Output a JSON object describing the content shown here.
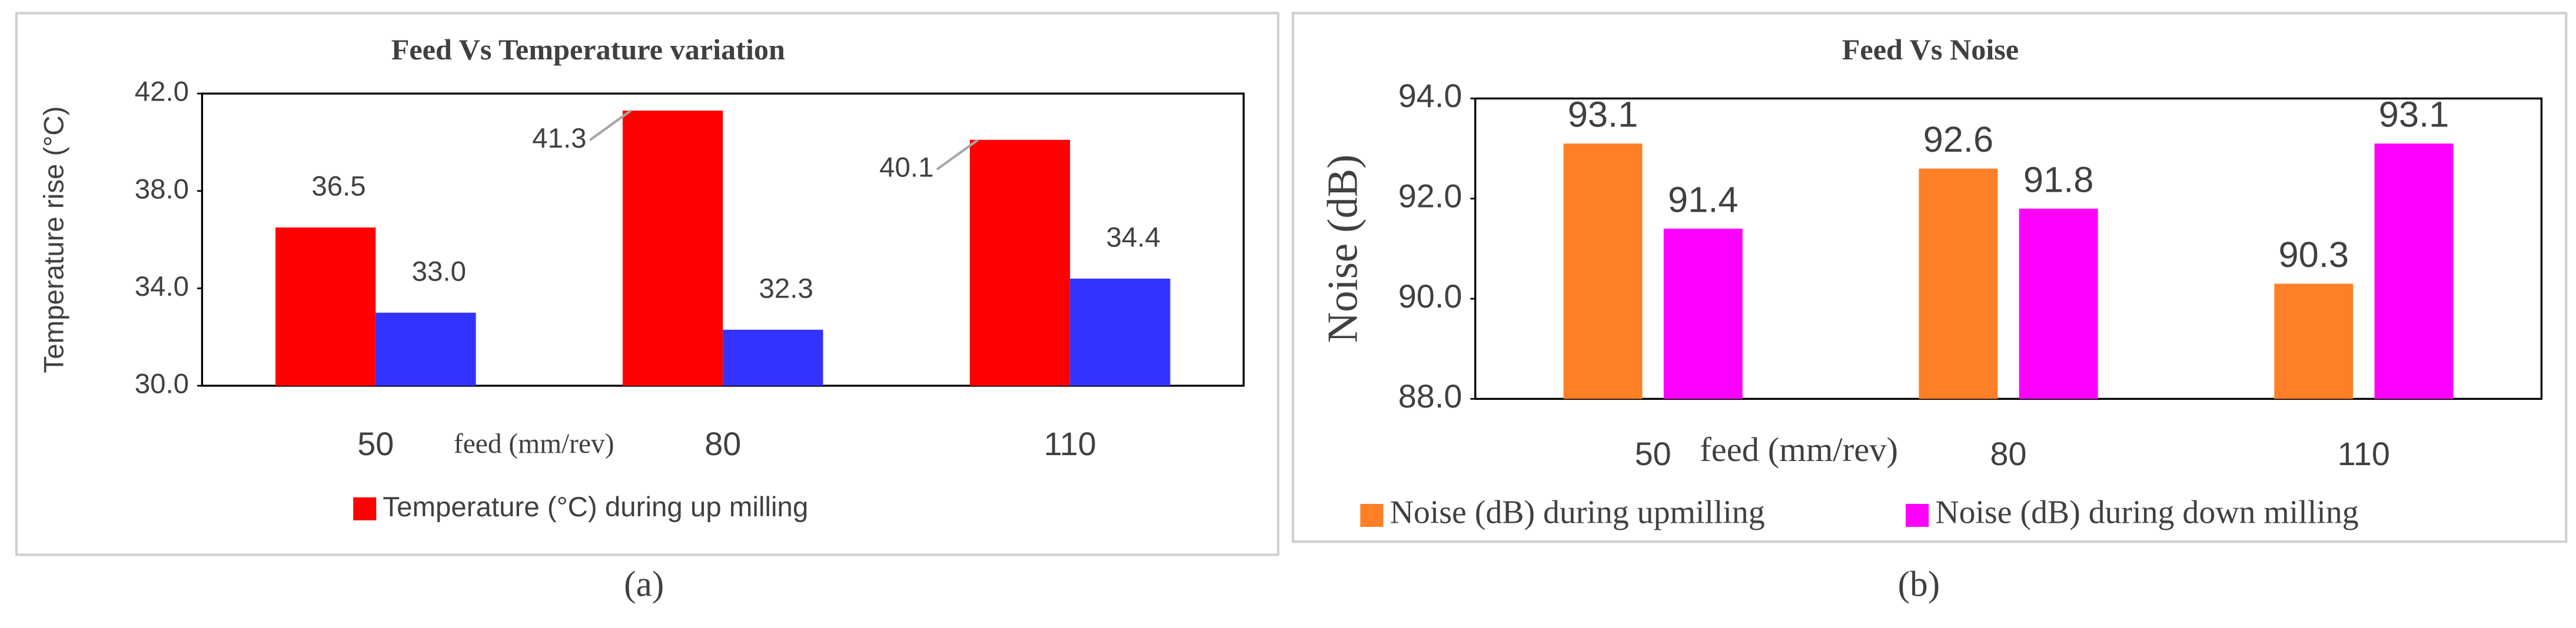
{
  "chart_data": [
    {
      "type": "bar",
      "title": "Feed Vs Temperature variation",
      "y_label": "Temperature rise (°C)",
      "x_label": "feed (mm/rev)",
      "categories": [
        "50",
        "80",
        "110"
      ],
      "series": [
        {
          "name": "Temperature  (°C) during up milling",
          "color": "#ff0000",
          "values": [
            36.5,
            41.3,
            40.1
          ]
        },
        {
          "color": "#3333ff",
          "values": [
            33.0,
            32.3,
            34.4
          ],
          "value_labels": [
            "33.0",
            "32.3",
            "34.4"
          ]
        }
      ],
      "ylim": [
        30,
        42
      ],
      "yticks": [
        {
          "value": 30,
          "label": "30.0"
        },
        {
          "value": 34,
          "label": "34.0"
        },
        {
          "value": 38,
          "label": "38.0"
        },
        {
          "value": 42,
          "label": "42.0"
        }
      ],
      "caption": "(a)"
    },
    {
      "type": "bar",
      "title": "Feed Vs Noise",
      "y_label": "Noise (dB)",
      "x_label": "feed (mm/rev)",
      "categories": [
        "50",
        "80",
        "110"
      ],
      "series": [
        {
          "name": "Noise (dB) during upmilling",
          "color": "#ff7f27",
          "values": [
            93.1,
            92.6,
            90.3
          ]
        },
        {
          "name": "Noise (dB) during down milling",
          "color": "#ff00ff",
          "values": [
            91.4,
            91.8,
            93.1
          ]
        }
      ],
      "ylim": [
        88,
        94
      ],
      "yticks": [
        {
          "value": 88,
          "label": "88.0"
        },
        {
          "value": 90,
          "label": "90.0"
        },
        {
          "value": 92,
          "label": "92.0"
        },
        {
          "value": 94,
          "label": "94.0"
        }
      ],
      "caption": "(b)"
    }
  ]
}
